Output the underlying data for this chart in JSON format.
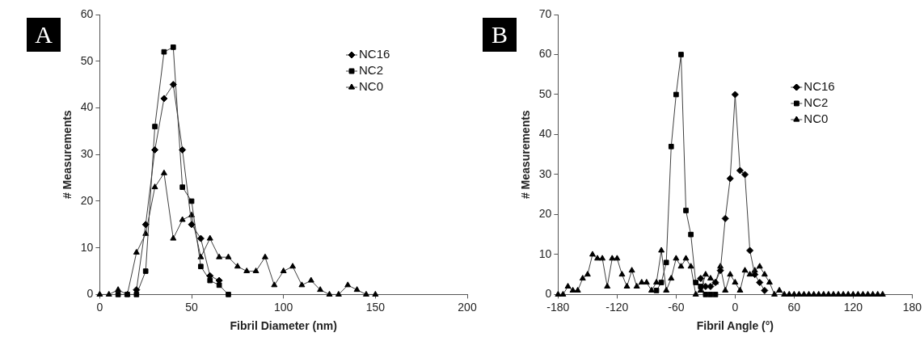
{
  "chart_data": [
    {
      "type": "line",
      "annotations": [
        "A"
      ],
      "xlabel": "Fibril Diameter (nm)",
      "ylabel": "# Measurements",
      "xlim": [
        0,
        200
      ],
      "xticks": [
        0,
        50,
        100,
        150,
        200
      ],
      "ylim": [
        0,
        60
      ],
      "yticks": [
        0,
        10,
        20,
        30,
        40,
        50,
        60
      ],
      "grid": false,
      "legend": "top right",
      "series": [
        {
          "name": "NC16",
          "color": "#000000",
          "marker": "diamond",
          "x": [
            20,
            25,
            30,
            35,
            40,
            45,
            50,
            55,
            60,
            65
          ],
          "values": [
            1,
            15,
            31,
            42,
            45,
            31,
            15,
            12,
            4,
            3
          ]
        },
        {
          "name": "NC2",
          "color": "#000000",
          "marker": "square",
          "x": [
            10,
            15,
            20,
            25,
            30,
            35,
            40,
            45,
            50,
            55,
            60,
            65,
            70
          ],
          "values": [
            0,
            0,
            0,
            5,
            36,
            52,
            53,
            23,
            20,
            6,
            3,
            2,
            0
          ]
        },
        {
          "name": "NC0",
          "color": "#000000",
          "marker": "triangle",
          "x": [
            0,
            5,
            10,
            15,
            20,
            25,
            30,
            35,
            40,
            45,
            50,
            55,
            60,
            65,
            70,
            75,
            80,
            85,
            90,
            95,
            100,
            105,
            110,
            115,
            120,
            125,
            130,
            135,
            140,
            145,
            150
          ],
          "values": [
            0,
            0,
            1,
            0,
            9,
            13,
            23,
            26,
            12,
            16,
            17,
            8,
            12,
            8,
            8,
            6,
            5,
            5,
            8,
            2,
            5,
            6,
            2,
            3,
            1,
            0,
            0,
            2,
            1,
            0,
            0
          ]
        }
      ]
    },
    {
      "type": "line",
      "annotations": [
        "B"
      ],
      "xlabel": "Fibril Angle (°)",
      "ylabel": "# Measurements",
      "xlim": [
        -180,
        180
      ],
      "xticks": [
        -180,
        -120,
        -60,
        0,
        60,
        120,
        180
      ],
      "ylim": [
        0,
        70
      ],
      "yticks": [
        0,
        10,
        20,
        30,
        40,
        50,
        60,
        70
      ],
      "grid": false,
      "legend": "top right",
      "series": [
        {
          "name": "NC16",
          "color": "#000000",
          "marker": "diamond",
          "x": [
            -35,
            -30,
            -25,
            -20,
            -15,
            -10,
            -5,
            0,
            5,
            10,
            15,
            20,
            25,
            30
          ],
          "values": [
            4,
            2,
            2,
            3,
            6,
            19,
            29,
            50,
            31,
            30,
            11,
            5,
            3,
            1
          ]
        },
        {
          "name": "NC2",
          "color": "#000000",
          "marker": "square",
          "x": [
            -80,
            -75,
            -70,
            -65,
            -60,
            -55,
            -50,
            -45,
            -40,
            -35,
            -30,
            -25,
            -20
          ],
          "values": [
            1,
            3,
            8,
            37,
            50,
            60,
            21,
            15,
            3,
            2,
            0,
            0,
            0
          ]
        },
        {
          "name": "NC0",
          "color": "#000000",
          "marker": "triangle",
          "x": [
            -180,
            -175,
            -170,
            -165,
            -160,
            -155,
            -150,
            -145,
            -140,
            -135,
            -130,
            -125,
            -120,
            -115,
            -110,
            -105,
            -100,
            -95,
            -90,
            -85,
            -80,
            -75,
            -70,
            -65,
            -60,
            -55,
            -50,
            -45,
            -40,
            -35,
            -30,
            -25,
            -20,
            -15,
            -10,
            -5,
            0,
            5,
            10,
            15,
            20,
            25,
            30,
            35,
            40,
            45,
            50,
            55,
            60,
            65,
            70,
            75,
            80,
            85,
            90,
            95,
            100,
            105,
            110,
            115,
            120,
            125,
            130,
            135,
            140,
            145,
            150
          ],
          "values": [
            0,
            0,
            2,
            1,
            1,
            4,
            5,
            10,
            9,
            9,
            2,
            9,
            9,
            5,
            2,
            6,
            2,
            3,
            3,
            1,
            3,
            11,
            1,
            4,
            9,
            7,
            9,
            7,
            0,
            1,
            5,
            4,
            3,
            7,
            1,
            5,
            3,
            1,
            6,
            5,
            6,
            7,
            5,
            3,
            0,
            1,
            0,
            0,
            0,
            0,
            0,
            0,
            0,
            0,
            0,
            0,
            0,
            0,
            0,
            0,
            0,
            0,
            0,
            0,
            0,
            0,
            0
          ]
        }
      ]
    }
  ]
}
